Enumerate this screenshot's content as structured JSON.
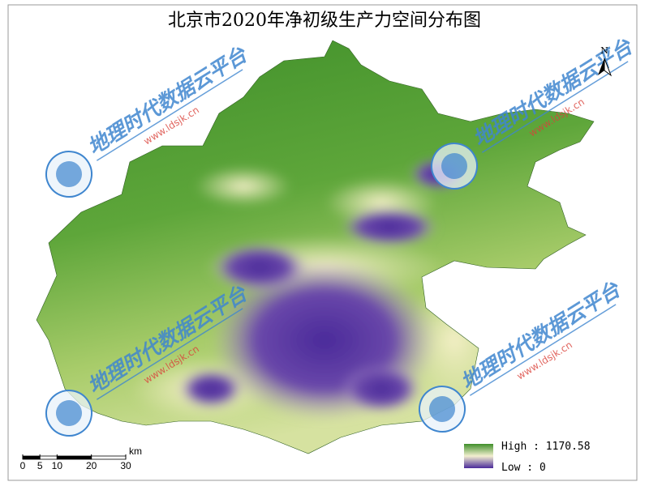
{
  "title": "北京市2020年净初级生产力空间分布图",
  "north_arrow": "N",
  "legend": {
    "high": "High : 1170.58",
    "low": "Low : 0"
  },
  "scale_bar": {
    "ticks": [
      0,
      5,
      10,
      20,
      30
    ],
    "unit": "km"
  },
  "watermark": {
    "text": "地理时代数据云平台",
    "url": "www.ldsjk.cn"
  }
}
